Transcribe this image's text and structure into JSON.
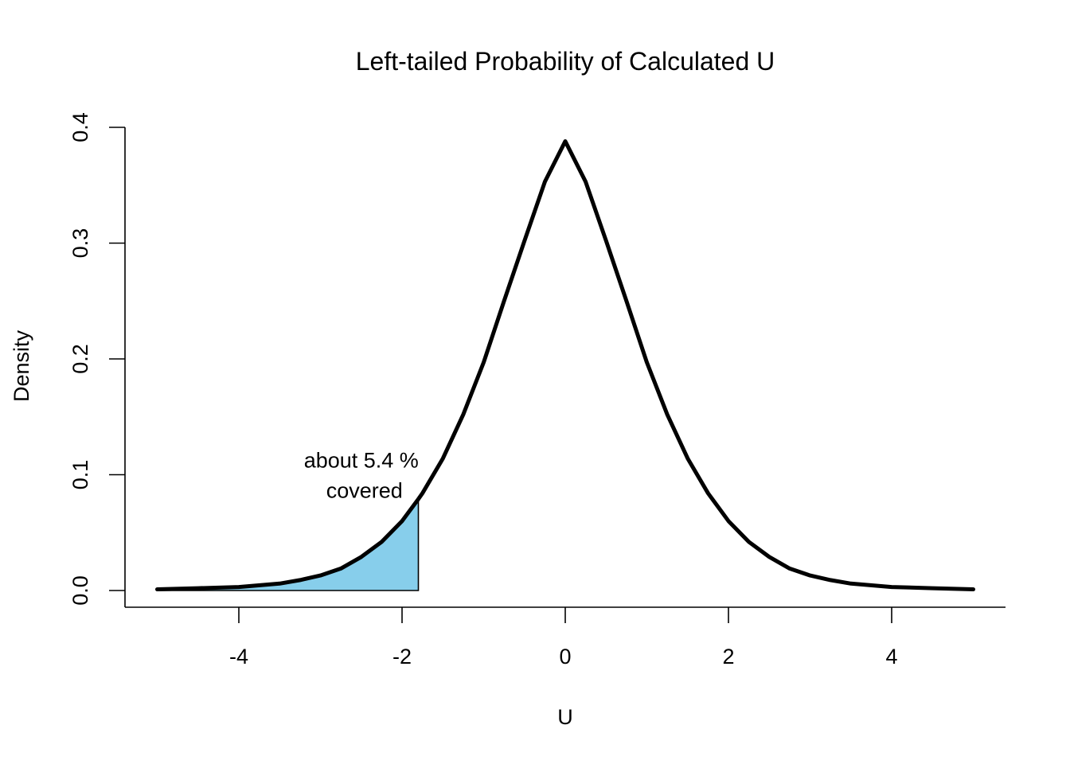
{
  "chart_data": {
    "type": "area",
    "title": "Left-tailed Probability of Calculated U",
    "xlabel": "U",
    "ylabel": "Density",
    "xlim": [
      -5,
      5
    ],
    "ylim": [
      0,
      0.4
    ],
    "x_ticks": [
      -4,
      -2,
      0,
      2,
      4
    ],
    "x_tick_labels": [
      "-4",
      "-2",
      "0",
      "2",
      "4"
    ],
    "y_ticks": [
      0.0,
      0.1,
      0.2,
      0.3,
      0.4
    ],
    "y_tick_labels": [
      "0.0",
      "0.1",
      "0.2",
      "0.3",
      "0.4"
    ],
    "grid": false,
    "series": [
      {
        "name": "",
        "x": [
          -5.0,
          -4.5,
          -4.0,
          -3.5,
          -3.25,
          -3.0,
          -2.75,
          -2.5,
          -2.25,
          -2.0,
          -1.8,
          -1.75,
          -1.5,
          -1.25,
          -1.0,
          -0.75,
          -0.5,
          -0.25,
          0.0,
          0.25,
          0.5,
          0.75,
          1.0,
          1.25,
          1.5,
          1.75,
          2.0,
          2.25,
          2.5,
          2.75,
          3.0,
          3.25,
          3.5,
          4.0,
          4.5,
          5.0
        ],
        "y": [
          0.001,
          0.002,
          0.003,
          0.006,
          0.009,
          0.013,
          0.019,
          0.029,
          0.042,
          0.06,
          0.079,
          0.084,
          0.114,
          0.152,
          0.197,
          0.25,
          0.302,
          0.353,
          0.388,
          0.353,
          0.302,
          0.25,
          0.197,
          0.152,
          0.114,
          0.084,
          0.06,
          0.042,
          0.029,
          0.019,
          0.013,
          0.009,
          0.006,
          0.003,
          0.002,
          0.001
        ]
      }
    ],
    "shaded_region": {
      "from": -5.0,
      "to": -1.8,
      "color": "#87ceeb"
    },
    "annotation": {
      "lines": [
        "about 5.4 %",
        "covered"
      ],
      "x": -2.5,
      "y": 0.1
    }
  }
}
